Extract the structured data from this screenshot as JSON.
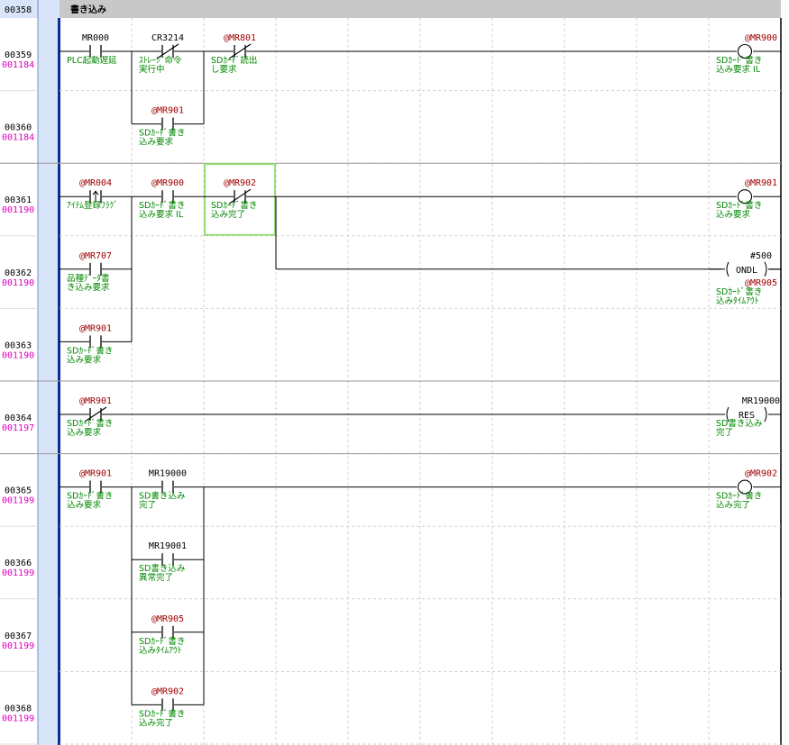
{
  "editor": {
    "colors": {
      "background": "#ffffff",
      "gutter": "#d8e4f8",
      "gutter_border": "#6f8fcf",
      "left_rail": "#0b2f8f",
      "comment_bar": "#c8c8c8",
      "line_number": "#000000",
      "step_number": "#e000c0",
      "device_normal": "#000000",
      "device_at": "#a00000",
      "comment_text": "#008800",
      "wire": "#000000",
      "grid": "#cfcfcf",
      "cursor": "#99dd77"
    },
    "section_comment": {
      "line": "00358",
      "text": "書き込み"
    },
    "rows": [
      {
        "line": "00359",
        "step": "001184"
      },
      {
        "line": "00360",
        "step": "001184"
      },
      {
        "line": "00361",
        "step": "001190"
      },
      {
        "line": "00362",
        "step": "001190"
      },
      {
        "line": "00363",
        "step": "001190"
      },
      {
        "line": "00364",
        "step": "001197"
      },
      {
        "line": "00365",
        "step": "001199"
      },
      {
        "line": "00366",
        "step": "001199"
      },
      {
        "line": "00367",
        "step": "001199"
      },
      {
        "line": "00368",
        "step": "001199"
      }
    ],
    "elements": [
      {
        "type": "contact-no",
        "row": 0,
        "col": 0,
        "dev": "MR000",
        "at": false,
        "comment": [
          "PLC起動遅延"
        ]
      },
      {
        "type": "contact-nc",
        "row": 0,
        "col": 1,
        "dev": "CR3214",
        "at": false,
        "comment": [
          "ｽﾄﾚｰｼﾞ命令",
          "実行中"
        ]
      },
      {
        "type": "contact-nc",
        "row": 0,
        "col": 2,
        "dev": "@MR801",
        "at": true,
        "comment": [
          "SDｶｰﾄﾞ読出",
          "し要求"
        ]
      },
      {
        "type": "coil-out",
        "row": 0,
        "col": 9,
        "dev": "@MR900",
        "at": true,
        "comment": [
          "SDｶｰﾄﾞ書き",
          "込み要求 IL"
        ]
      },
      {
        "type": "contact-no",
        "row": 1,
        "col": 1,
        "dev": "@MR901",
        "at": true,
        "comment": [
          "SDｶｰﾄﾞ書き",
          "込み要求"
        ]
      },
      {
        "type": "contact-rise",
        "row": 2,
        "col": 0,
        "dev": "@MR004",
        "at": true,
        "comment": [
          "ｱｲﾃﾑ登録ﾌﾗｸﾞ"
        ]
      },
      {
        "type": "contact-no",
        "row": 2,
        "col": 1,
        "dev": "@MR900",
        "at": true,
        "comment": [
          "SDｶｰﾄﾞ書き",
          "込み要求 IL"
        ]
      },
      {
        "type": "contact-nc",
        "row": 2,
        "col": 2,
        "dev": "@MR902",
        "at": true,
        "comment": [
          "SDｶｰﾄﾞ書き",
          "込み完了"
        ]
      },
      {
        "type": "coil-out",
        "row": 2,
        "col": 9,
        "dev": "@MR901",
        "at": true,
        "comment": [
          "SDｶｰﾄﾞ書き",
          "込み要求"
        ]
      },
      {
        "type": "contact-no",
        "row": 3,
        "col": 0,
        "dev": "@MR707",
        "at": true,
        "comment": [
          "品種ﾃﾞｰﾀ書",
          "き込み要求"
        ]
      },
      {
        "type": "func-box",
        "row": 3,
        "col": 9,
        "dev": "#500",
        "at": false,
        "inst": "ONDL",
        "dev2": "@MR905",
        "comment": [
          "SDｶｰﾄﾞ書き",
          "込みﾀｲﾑｱｳﾄ"
        ]
      },
      {
        "type": "contact-no",
        "row": 4,
        "col": 0,
        "dev": "@MR901",
        "at": true,
        "comment": [
          "SDｶｰﾄﾞ書き",
          "込み要求"
        ]
      },
      {
        "type": "contact-nc",
        "row": 5,
        "col": 0,
        "dev": "@MR901",
        "at": true,
        "comment": [
          "SDｶｰﾄﾞ書き",
          "込み要求"
        ]
      },
      {
        "type": "func-box",
        "row": 5,
        "col": 9,
        "dev": "MR19000",
        "at": false,
        "inst": "RES",
        "comment": [
          "SD書き込み",
          "完了"
        ]
      },
      {
        "type": "contact-no",
        "row": 6,
        "col": 0,
        "dev": "@MR901",
        "at": true,
        "comment": [
          "SDｶｰﾄﾞ書き",
          "込み要求"
        ]
      },
      {
        "type": "contact-no",
        "row": 6,
        "col": 1,
        "dev": "MR19000",
        "at": false,
        "comment": [
          "SD書き込み",
          "完了"
        ]
      },
      {
        "type": "coil-out",
        "row": 6,
        "col": 9,
        "dev": "@MR902",
        "at": true,
        "comment": [
          "SDｶｰﾄﾞ書き",
          "込み完了"
        ]
      },
      {
        "type": "contact-no",
        "row": 7,
        "col": 1,
        "dev": "MR19001",
        "at": false,
        "comment": [
          "SD書き込み",
          "異常完了"
        ]
      },
      {
        "type": "contact-no",
        "row": 8,
        "col": 1,
        "dev": "@MR905",
        "at": true,
        "comment": [
          "SDｶｰﾄﾞ書き",
          "込みﾀｲﾑｱｳﾄ"
        ]
      },
      {
        "type": "contact-no",
        "row": 9,
        "col": 1,
        "dev": "@MR902",
        "at": true,
        "comment": [
          "SDｶｰﾄﾞ書き",
          "込み完了"
        ]
      }
    ],
    "wires": [
      {
        "kind": "h",
        "row": 0,
        "from": 0,
        "to": 10
      },
      {
        "kind": "h",
        "row": 1,
        "from": 1,
        "to": 2
      },
      {
        "kind": "v",
        "col": 1,
        "from": 0,
        "to": 1
      },
      {
        "kind": "v",
        "col": 2,
        "from": 0,
        "to": 1
      },
      {
        "kind": "h",
        "row": 2,
        "from": 0,
        "to": 10
      },
      {
        "kind": "h",
        "row": 3,
        "from": 0,
        "to": 1
      },
      {
        "kind": "h",
        "row": 4,
        "from": 0,
        "to": 1
      },
      {
        "kind": "v",
        "col": 1,
        "from": 2,
        "to": 4
      },
      {
        "kind": "h",
        "row": 3,
        "from": 3,
        "to": 10
      },
      {
        "kind": "v",
        "col": 3,
        "from": 2,
        "to": 3
      },
      {
        "kind": "h",
        "row": 5,
        "from": 0,
        "to": 10
      },
      {
        "kind": "h",
        "row": 6,
        "from": 0,
        "to": 10
      },
      {
        "kind": "h",
        "row": 7,
        "from": 1,
        "to": 2
      },
      {
        "kind": "h",
        "row": 8,
        "from": 1,
        "to": 2
      },
      {
        "kind": "h",
        "row": 9,
        "from": 1,
        "to": 2
      },
      {
        "kind": "v",
        "col": 1,
        "from": 6,
        "to": 9
      },
      {
        "kind": "v",
        "col": 2,
        "from": 6,
        "to": 9
      }
    ],
    "cursor": {
      "row": 2,
      "col": 2
    }
  }
}
